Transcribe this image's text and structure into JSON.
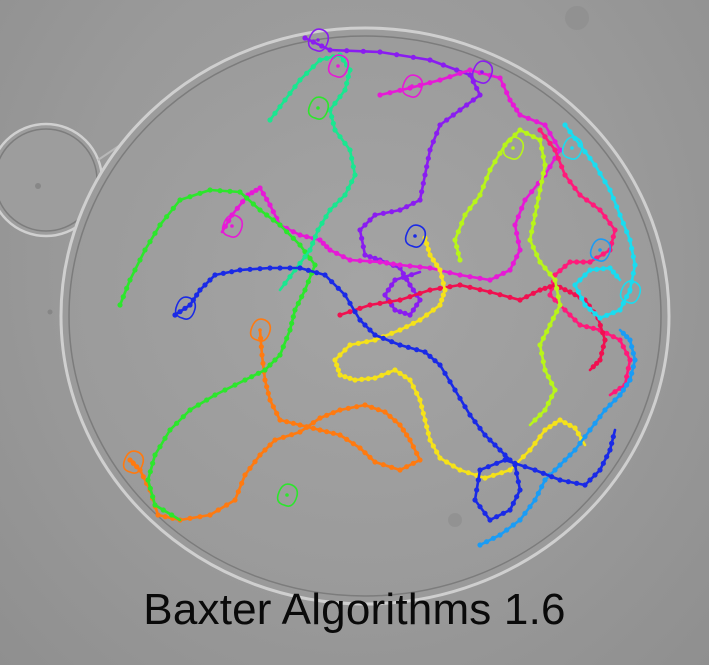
{
  "caption": "Baxter Algorithms 1.6",
  "colors": {
    "background": "#969696",
    "well_rim": "#c8c8c8",
    "well_rim_dark": "#7a7a7a",
    "caption_text": "#0a0a0a"
  },
  "tracks": [
    {
      "name": "violet-track",
      "color": "#8a1cf0"
    },
    {
      "name": "magenta-track",
      "color": "#e61ad6"
    },
    {
      "name": "pink-track",
      "color": "#ff1a7a"
    },
    {
      "name": "red-track",
      "color": "#f01050"
    },
    {
      "name": "orange-track",
      "color": "#ff7a10"
    },
    {
      "name": "yellow-track",
      "color": "#f5e21a"
    },
    {
      "name": "lime-track",
      "color": "#b8f51a"
    },
    {
      "name": "green-track",
      "color": "#2ce62c"
    },
    {
      "name": "spring-green-track",
      "color": "#1ae690"
    },
    {
      "name": "cyan-track",
      "color": "#1adcf0"
    },
    {
      "name": "sky-blue-track",
      "color": "#1a9cf5"
    },
    {
      "name": "blue-track",
      "color": "#1a2ae6"
    }
  ]
}
